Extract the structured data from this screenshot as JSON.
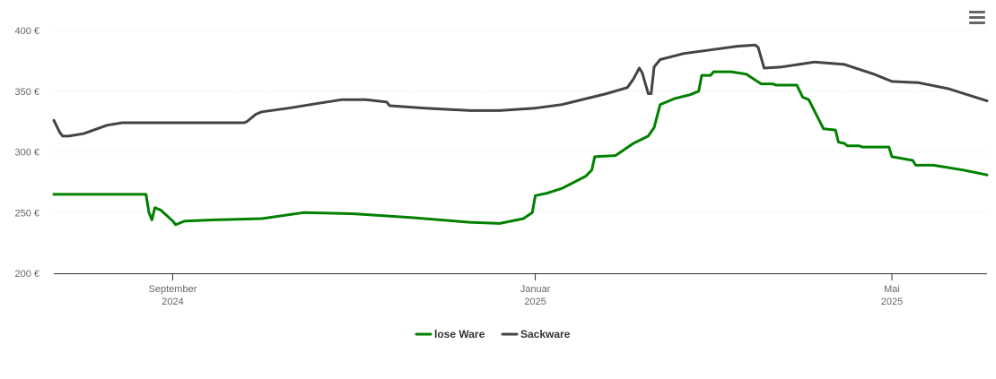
{
  "chart_data": {
    "type": "line",
    "title": "",
    "xlabel": "",
    "ylabel": "",
    "ylim": [
      200,
      400
    ],
    "yticks": [
      {
        "value": 200,
        "label": "200 €"
      },
      {
        "value": 250,
        "label": "250 €"
      },
      {
        "value": 300,
        "label": "300 €"
      },
      {
        "value": 350,
        "label": "350 €"
      },
      {
        "value": 400,
        "label": "400 €"
      }
    ],
    "xlim": [
      "2024-07-23",
      "2025-06-02"
    ],
    "xticks": [
      {
        "date": "2024-09-01",
        "month": "September",
        "year": "2024"
      },
      {
        "date": "2025-01-01",
        "month": "Januar",
        "year": "2025"
      },
      {
        "date": "2025-05-01",
        "month": "Mai",
        "year": "2025"
      }
    ],
    "grid": true,
    "legend_position": "bottom-center",
    "series": [
      {
        "name": "lose Ware",
        "color": "#008000",
        "points": [
          [
            "2024-07-23",
            265
          ],
          [
            "2024-08-23",
            265
          ],
          [
            "2024-08-24",
            250
          ],
          [
            "2024-08-25",
            244
          ],
          [
            "2024-08-26",
            254
          ],
          [
            "2024-08-28",
            252
          ],
          [
            "2024-09-01",
            243
          ],
          [
            "2024-09-02",
            240
          ],
          [
            "2024-09-05",
            243
          ],
          [
            "2024-09-15",
            244
          ],
          [
            "2024-10-01",
            245
          ],
          [
            "2024-10-15",
            250
          ],
          [
            "2024-11-01",
            249
          ],
          [
            "2024-11-20",
            246
          ],
          [
            "2024-12-10",
            242
          ],
          [
            "2024-12-20",
            241
          ],
          [
            "2024-12-28",
            245
          ],
          [
            "2024-12-31",
            250
          ],
          [
            "2025-01-01",
            264
          ],
          [
            "2025-01-05",
            266
          ],
          [
            "2025-01-10",
            270
          ],
          [
            "2025-01-18",
            280
          ],
          [
            "2025-01-20",
            285
          ],
          [
            "2025-01-21",
            296
          ],
          [
            "2025-01-28",
            297
          ],
          [
            "2025-02-03",
            307
          ],
          [
            "2025-02-08",
            313
          ],
          [
            "2025-02-10",
            320
          ],
          [
            "2025-02-12",
            339
          ],
          [
            "2025-02-17",
            344
          ],
          [
            "2025-02-22",
            347
          ],
          [
            "2025-02-25",
            350
          ],
          [
            "2025-02-26",
            363
          ],
          [
            "2025-03-01",
            363
          ],
          [
            "2025-03-02",
            366
          ],
          [
            "2025-03-08",
            366
          ],
          [
            "2025-03-13",
            364
          ],
          [
            "2025-03-18",
            356
          ],
          [
            "2025-03-22",
            356
          ],
          [
            "2025-03-23",
            355
          ],
          [
            "2025-03-30",
            355
          ],
          [
            "2025-04-01",
            345
          ],
          [
            "2025-04-03",
            343
          ],
          [
            "2025-04-08",
            319
          ],
          [
            "2025-04-12",
            318
          ],
          [
            "2025-04-13",
            308
          ],
          [
            "2025-04-15",
            307
          ],
          [
            "2025-04-16",
            305
          ],
          [
            "2025-04-20",
            305
          ],
          [
            "2025-04-21",
            304
          ],
          [
            "2025-04-30",
            304
          ],
          [
            "2025-05-01",
            296
          ],
          [
            "2025-05-08",
            293
          ],
          [
            "2025-05-09",
            289
          ],
          [
            "2025-05-15",
            289
          ],
          [
            "2025-05-25",
            285
          ],
          [
            "2025-06-02",
            281
          ]
        ]
      },
      {
        "name": "Sackware",
        "color": "#434348",
        "points": [
          [
            "2024-07-23",
            326
          ],
          [
            "2024-07-25",
            316
          ],
          [
            "2024-07-26",
            313
          ],
          [
            "2024-07-28",
            313
          ],
          [
            "2024-08-02",
            315
          ],
          [
            "2024-08-10",
            322
          ],
          [
            "2024-08-15",
            324
          ],
          [
            "2024-09-01",
            324
          ],
          [
            "2024-09-25",
            324
          ],
          [
            "2024-09-26",
            325
          ],
          [
            "2024-09-29",
            331
          ],
          [
            "2024-10-01",
            333
          ],
          [
            "2024-10-10",
            336
          ],
          [
            "2024-10-20",
            340
          ],
          [
            "2024-10-28",
            343
          ],
          [
            "2024-11-05",
            343
          ],
          [
            "2024-11-12",
            341
          ],
          [
            "2024-11-13",
            338
          ],
          [
            "2024-11-25",
            336
          ],
          [
            "2024-12-10",
            334
          ],
          [
            "2024-12-20",
            334
          ],
          [
            "2025-01-01",
            336
          ],
          [
            "2025-01-10",
            339
          ],
          [
            "2025-01-25",
            348
          ],
          [
            "2025-02-01",
            353
          ],
          [
            "2025-02-03",
            360
          ],
          [
            "2025-02-05",
            369
          ],
          [
            "2025-02-06",
            365
          ],
          [
            "2025-02-08",
            348
          ],
          [
            "2025-02-09",
            348
          ],
          [
            "2025-02-10",
            370
          ],
          [
            "2025-02-12",
            376
          ],
          [
            "2025-02-20",
            381
          ],
          [
            "2025-03-01",
            384
          ],
          [
            "2025-03-10",
            387
          ],
          [
            "2025-03-16",
            388
          ],
          [
            "2025-03-17",
            386
          ],
          [
            "2025-03-19",
            369
          ],
          [
            "2025-03-25",
            370
          ],
          [
            "2025-04-05",
            374
          ],
          [
            "2025-04-15",
            372
          ],
          [
            "2025-04-25",
            364
          ],
          [
            "2025-05-01",
            358
          ],
          [
            "2025-05-10",
            357
          ],
          [
            "2025-05-20",
            352
          ],
          [
            "2025-06-02",
            342
          ]
        ]
      }
    ]
  }
}
